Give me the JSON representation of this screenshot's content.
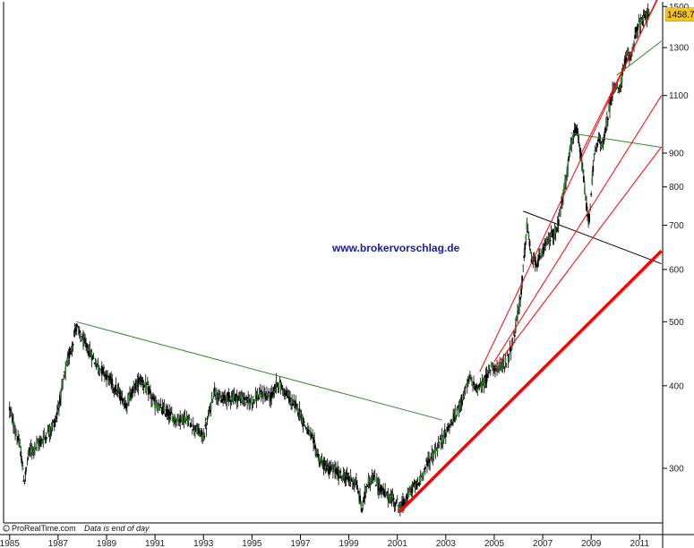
{
  "chart_data": {
    "type": "line",
    "title": "",
    "subtitle": "",
    "xlabel": "",
    "ylabel": "",
    "scale": "log",
    "grid": false,
    "xlim": [
      1984.75,
      2011.95
    ],
    "ylim": [
      248,
      1525
    ],
    "x_ticks": [
      "1985",
      "1987",
      "1989",
      "1991",
      "1993",
      "1995",
      "1997",
      "1999",
      "2001",
      "2003",
      "2005",
      "2007",
      "2009",
      "2011"
    ],
    "y_ticks": [
      300,
      400,
      500,
      600,
      700,
      800,
      900,
      1100,
      1300,
      1500
    ],
    "last_price": "1458.7",
    "last_price_label_color": "#f5c518",
    "watermark": "www.brokervorschlag.de",
    "footer_source": "ProRealTime.com",
    "footer_note": "Data is end of day",
    "candle_color": "#000000",
    "up_candle_color": "#2e8b2e",
    "series": [
      {
        "values": [
          [
            1985.0,
            370
          ],
          [
            1985.2,
            345
          ],
          [
            1985.45,
            320
          ],
          [
            1985.6,
            285
          ],
          [
            1985.8,
            318
          ],
          [
            1986.0,
            322
          ],
          [
            1986.3,
            330
          ],
          [
            1986.6,
            340
          ],
          [
            1986.9,
            355
          ],
          [
            1987.1,
            385
          ],
          [
            1987.35,
            430
          ],
          [
            1987.6,
            465
          ],
          [
            1987.75,
            495
          ],
          [
            1987.85,
            480
          ],
          [
            1988.0,
            470
          ],
          [
            1988.3,
            450
          ],
          [
            1988.6,
            430
          ],
          [
            1988.9,
            420
          ],
          [
            1989.2,
            405
          ],
          [
            1989.5,
            390
          ],
          [
            1989.8,
            375
          ],
          [
            1990.1,
            395
          ],
          [
            1990.4,
            410
          ],
          [
            1990.7,
            395
          ],
          [
            1991.0,
            375
          ],
          [
            1991.3,
            368
          ],
          [
            1991.6,
            362
          ],
          [
            1991.9,
            355
          ],
          [
            1992.2,
            358
          ],
          [
            1992.5,
            350
          ],
          [
            1992.8,
            340
          ],
          [
            1993.0,
            335
          ],
          [
            1993.25,
            365
          ],
          [
            1993.45,
            395
          ],
          [
            1993.7,
            380
          ],
          [
            1994.0,
            385
          ],
          [
            1994.3,
            385
          ],
          [
            1994.6,
            382
          ],
          [
            1994.9,
            378
          ],
          [
            1995.2,
            385
          ],
          [
            1995.5,
            388
          ],
          [
            1995.8,
            385
          ],
          [
            1996.05,
            405
          ],
          [
            1996.3,
            395
          ],
          [
            1996.6,
            380
          ],
          [
            1996.9,
            370
          ],
          [
            1997.2,
            348
          ],
          [
            1997.5,
            332
          ],
          [
            1997.8,
            308
          ],
          [
            1998.1,
            300
          ],
          [
            1998.4,
            298
          ],
          [
            1998.7,
            292
          ],
          [
            1999.0,
            290
          ],
          [
            1999.3,
            285
          ],
          [
            1999.55,
            260
          ],
          [
            1999.75,
            285
          ],
          [
            2000.0,
            290
          ],
          [
            2000.3,
            280
          ],
          [
            2000.6,
            272
          ],
          [
            2000.9,
            268
          ],
          [
            2001.15,
            262
          ],
          [
            2001.35,
            268
          ],
          [
            2001.6,
            280
          ],
          [
            2001.9,
            285
          ],
          [
            2002.2,
            305
          ],
          [
            2002.5,
            315
          ],
          [
            2002.8,
            330
          ],
          [
            2003.1,
            345
          ],
          [
            2003.4,
            360
          ],
          [
            2003.7,
            385
          ],
          [
            2004.0,
            410
          ],
          [
            2004.3,
            395
          ],
          [
            2004.6,
            405
          ],
          [
            2004.9,
            430
          ],
          [
            2005.2,
            425
          ],
          [
            2005.5,
            435
          ],
          [
            2005.8,
            470
          ],
          [
            2006.1,
            550
          ],
          [
            2006.35,
            700
          ],
          [
            2006.55,
            620
          ],
          [
            2006.8,
            615
          ],
          [
            2007.1,
            650
          ],
          [
            2007.35,
            675
          ],
          [
            2007.6,
            690
          ],
          [
            2007.9,
            800
          ],
          [
            2008.2,
            940
          ],
          [
            2008.4,
            975
          ],
          [
            2008.6,
            880
          ],
          [
            2008.8,
            750
          ],
          [
            2008.9,
            700
          ],
          [
            2009.1,
            880
          ],
          [
            2009.3,
            940
          ],
          [
            2009.5,
            930
          ],
          [
            2009.75,
            1050
          ],
          [
            2009.95,
            1150
          ],
          [
            2010.15,
            1110
          ],
          [
            2010.4,
            1240
          ],
          [
            2010.65,
            1270
          ],
          [
            2010.85,
            1380
          ],
          [
            2011.05,
            1420
          ],
          [
            2011.25,
            1440
          ],
          [
            2011.4,
            1458.7
          ]
        ]
      }
    ],
    "trendlines": [
      {
        "color": "#2e8b2e",
        "points": [
          [
            1987.75,
            500
          ],
          [
            2002.85,
            355
          ]
        ]
      },
      {
        "color": "#2e8b2e",
        "points": [
          [
            2008.15,
            965
          ],
          [
            2011.9,
            918
          ]
        ]
      },
      {
        "color": "#2e8b2e",
        "points": [
          [
            2010.05,
            1180
          ],
          [
            2011.9,
            1330
          ]
        ]
      },
      {
        "color": "#000000",
        "points": [
          [
            2006.2,
            735
          ],
          [
            2011.9,
            612
          ]
        ]
      },
      {
        "color": "#ff0000",
        "bold": true,
        "points": [
          [
            2001.1,
            258
          ],
          [
            2011.9,
            640
          ]
        ]
      },
      {
        "color": "#ff0000",
        "points": [
          [
            2004.4,
            420
          ],
          [
            2011.9,
            1590
          ]
        ]
      },
      {
        "color": "#ff0000",
        "points": [
          [
            2005.0,
            435
          ],
          [
            2011.9,
            1100
          ]
        ]
      },
      {
        "color": "#ff0000",
        "points": [
          [
            2005.0,
            425
          ],
          [
            2011.9,
            920
          ]
        ]
      },
      {
        "color": "#ff0000",
        "points": [
          [
            2008.6,
            900
          ],
          [
            2011.9,
            1580
          ]
        ]
      }
    ]
  }
}
